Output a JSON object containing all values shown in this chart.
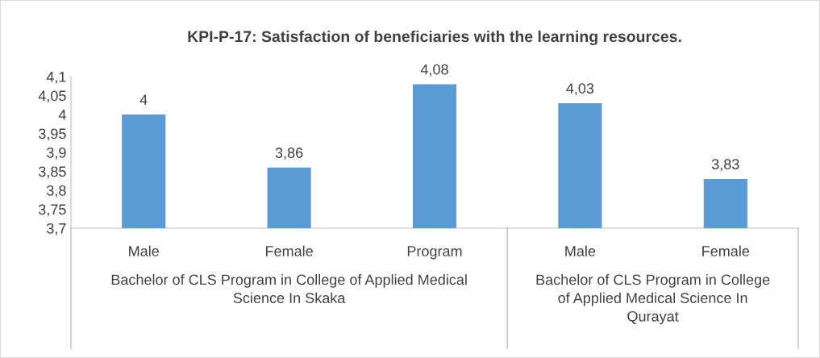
{
  "chart_data": {
    "type": "bar",
    "title": "KPI-P-17: Satisfaction of beneficiaries with the learning resources.",
    "categories": [
      "Male",
      "Female",
      "Program",
      "Male",
      "Female"
    ],
    "values": [
      4,
      3.86,
      4.08,
      4.03,
      3.83
    ],
    "value_labels": [
      "4",
      "3,86",
      "4,08",
      "4,03",
      "3,83"
    ],
    "color": "#5b9bd5",
    "ylim": [
      3.7,
      4.1
    ],
    "yticks": [
      {
        "value": 3.7,
        "label": "3,7"
      },
      {
        "value": 3.75,
        "label": "3,75"
      },
      {
        "value": 3.8,
        "label": "3,8"
      },
      {
        "value": 3.85,
        "label": "3,85"
      },
      {
        "value": 3.9,
        "label": "3,9"
      },
      {
        "value": 3.95,
        "label": "3,95"
      },
      {
        "value": 4,
        "label": "4"
      },
      {
        "value": 4.05,
        "label": "4,05"
      },
      {
        "value": 4.1,
        "label": "4,1"
      }
    ],
    "annotations": [
      "Bachelor of CLS Program in College of Applied Medical\nScience In Skaka",
      "Bachelor of CLS Program in College\nof Applied Medical Science In\nQurayat"
    ],
    "grid": false,
    "legend": false
  }
}
